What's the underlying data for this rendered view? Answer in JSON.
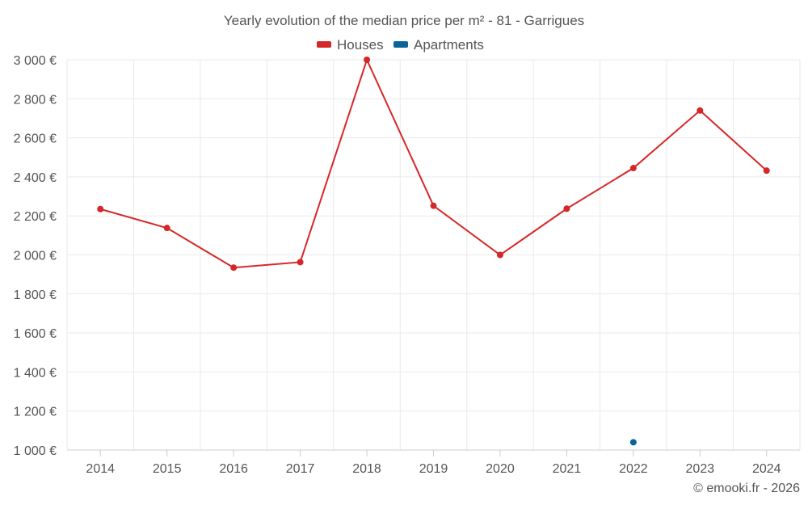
{
  "chart_data": {
    "type": "line",
    "title": "Yearly evolution of the median price per m² - 81 - Garrigues",
    "categories": [
      "2014",
      "2015",
      "2016",
      "2017",
      "2018",
      "2019",
      "2020",
      "2021",
      "2022",
      "2023",
      "2024"
    ],
    "series": [
      {
        "name": "Houses",
        "color": "#d62728",
        "values": [
          2235,
          2138,
          1935,
          1963,
          3000,
          2252,
          2000,
          2237,
          2445,
          2740,
          2432
        ]
      },
      {
        "name": "Apartments",
        "color": "#0a6496",
        "values": [
          null,
          null,
          null,
          null,
          null,
          null,
          null,
          null,
          1040,
          null,
          null
        ]
      }
    ],
    "ylim": [
      1000,
      3000
    ],
    "yticks": [
      1000,
      1200,
      1400,
      1600,
      1800,
      2000,
      2200,
      2400,
      2600,
      2800,
      3000
    ],
    "ytick_labels": [
      "1 000 €",
      "1 200 €",
      "1 400 €",
      "1 600 €",
      "1 800 €",
      "2 000 €",
      "2 200 €",
      "2 400 €",
      "2 600 €",
      "2 800 €",
      "3 000 €"
    ],
    "legend_position": "top-center",
    "grid": true,
    "xlabel": "",
    "ylabel": ""
  },
  "credit": "© emooki.fr - 2026"
}
